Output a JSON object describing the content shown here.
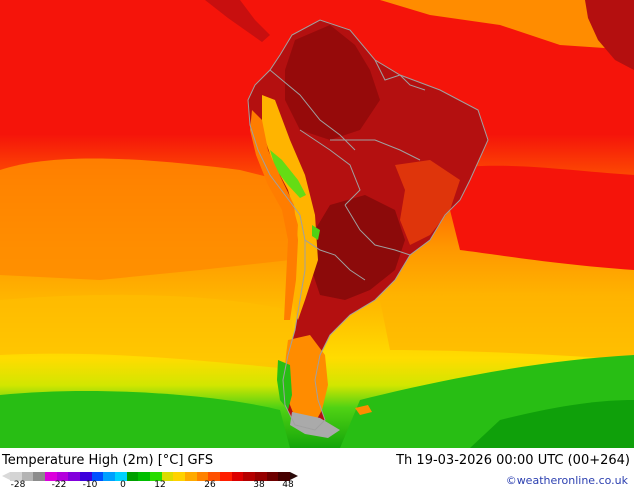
{
  "map": {
    "region": "South America",
    "field": "2m maximum temperature",
    "colors": {
      "ocean_red": "#f5140a",
      "hot_dark": "#a50f0f",
      "hot": "#c80f0f",
      "orange": "#ff7d00",
      "orange_light": "#ff9b00",
      "amber": "#ffb400",
      "yellow": "#ffdc00",
      "green_light": "#64dc14",
      "green": "#28be14",
      "green_dark": "#0fa00a",
      "grey_land": "#aaaaaa",
      "border": "#a0a0a0"
    }
  },
  "footer": {
    "title": "Temperature High (2m) [°C] GFS",
    "datetime": "Th 19-03-2026 00:00 UTC (00+264)",
    "credit": "©weatheronline.co.uk"
  },
  "colorbar": {
    "ticks": [
      "-28",
      "-22",
      "-10",
      "0",
      "12",
      "26",
      "38",
      "48"
    ],
    "colors": [
      "#d4d4d4",
      "#b4b4b4",
      "#8c8c8c",
      "#dc00dc",
      "#b400dc",
      "#8200dc",
      "#3c00dc",
      "#0050ff",
      "#00a0ff",
      "#00d2ff",
      "#00a000",
      "#00be00",
      "#28dc00",
      "#dcdc00",
      "#ffd200",
      "#ffaa00",
      "#ff8200",
      "#ff5000",
      "#ff1e00",
      "#dc0000",
      "#b40000",
      "#960000",
      "#6e0000",
      "#460000"
    ]
  }
}
